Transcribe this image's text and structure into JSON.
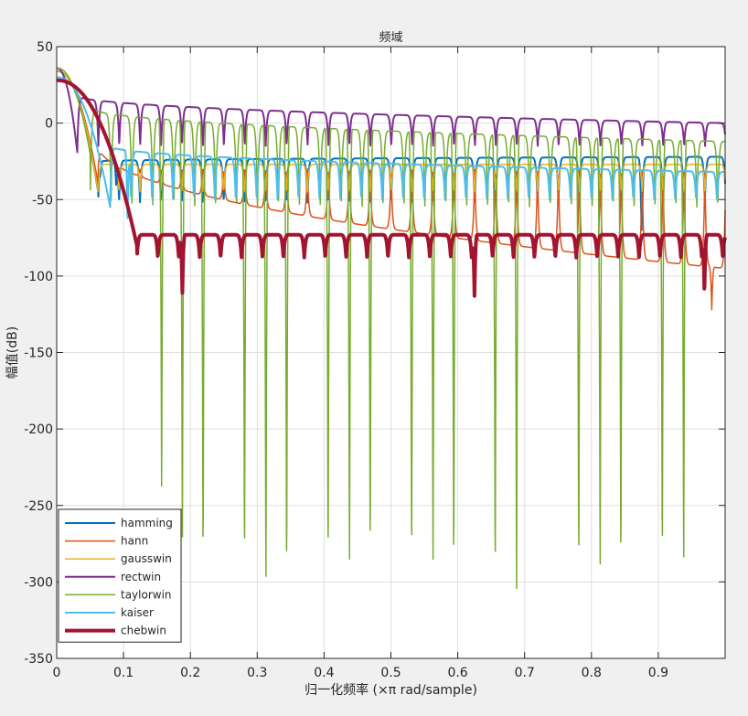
{
  "chart_data": {
    "type": "line",
    "title": "频域",
    "xlabel": "归一化频率  (×π rad/sample)",
    "ylabel": "幅值(dB)",
    "xlim": [
      0,
      1
    ],
    "ylim": [
      -350,
      50
    ],
    "xticks": [
      0,
      0.1,
      0.2,
      0.3,
      0.4,
      0.5,
      0.6,
      0.7,
      0.8,
      0.9
    ],
    "xtick_labels": [
      "0",
      "0.1",
      "0.2",
      "0.3",
      "0.4",
      "0.5",
      "0.6",
      "0.7",
      "0.8",
      "0.9"
    ],
    "yticks": [
      50,
      0,
      -50,
      -100,
      -150,
      -200,
      -250,
      -300,
      -350
    ],
    "ytick_labels": [
      "50",
      "0",
      "-50",
      "-100",
      "-150",
      "-200",
      "-250",
      "-300",
      "-350"
    ],
    "grid": true,
    "legend_position": "bottom-left",
    "series": [
      {
        "name": "hamming",
        "color": "#0072bd",
        "line_width": 2,
        "main_lobe": {
          "peak": 34,
          "first_null": 0.062,
          "null_depth": -45
        },
        "sidelobes": {
          "first_peak": -25,
          "far_peak": -22,
          "period": 0.0313,
          "null_depth": -52
        },
        "deep_nulls": [
          {
            "x": 0.065,
            "y": -35
          },
          {
            "x": 0.089,
            "y": -42
          },
          {
            "x": 0.875,
            "y": -70
          }
        ]
      },
      {
        "name": "hann",
        "color": "#d95319",
        "line_width": 1.5,
        "main_lobe": {
          "peak": 34,
          "first_null": 0.062,
          "null_depth": -40
        },
        "sidelobes": {
          "first_peak": -14,
          "far_peak": -95,
          "period": 0.0313,
          "null_depth": -30
        },
        "deep_nulls": [
          {
            "x": 0.98,
            "y": -122
          }
        ]
      },
      {
        "name": "gausswin",
        "color": "#edb120",
        "line_width": 1.5,
        "main_lobe": {
          "peak": 34,
          "first_null": 0.062,
          "null_depth": -45
        },
        "sidelobes": {
          "first_peak": -27,
          "far_peak": -27,
          "period": 0.0313,
          "null_depth": -45
        },
        "deep_nulls": []
      },
      {
        "name": "rectwin",
        "color": "#7e2f8e",
        "line_width": 2,
        "main_lobe": {
          "peak": 36,
          "first_null": 0.031,
          "null_depth": -20
        },
        "sidelobes": {
          "first_peak": 18,
          "far_peak": 0,
          "period": 0.0313,
          "null_depth": -15
        },
        "deep_nulls": []
      },
      {
        "name": "taylorwin",
        "color": "#77ac30",
        "line_width": 1.5,
        "main_lobe": {
          "peak": 36,
          "first_null": 0.05,
          "null_depth": -20
        },
        "sidelobes": {
          "first_peak": 10,
          "far_peak": -12,
          "period": 0.0313,
          "null_depth": -55
        },
        "deep_nulls": [
          {
            "x": 0.157,
            "y": -250
          },
          {
            "x": 0.188,
            "y": -285
          },
          {
            "x": 0.219,
            "y": -300
          },
          {
            "x": 0.281,
            "y": -301
          },
          {
            "x": 0.313,
            "y": -312
          },
          {
            "x": 0.344,
            "y": -310
          },
          {
            "x": 0.406,
            "y": -300
          },
          {
            "x": 0.438,
            "y": -300
          },
          {
            "x": 0.469,
            "y": -295
          },
          {
            "x": 0.531,
            "y": -298
          },
          {
            "x": 0.563,
            "y": -300
          },
          {
            "x": 0.594,
            "y": -305
          },
          {
            "x": 0.656,
            "y": -310
          },
          {
            "x": 0.688,
            "y": -320
          },
          {
            "x": 0.781,
            "y": -305
          },
          {
            "x": 0.813,
            "y": -303
          },
          {
            "x": 0.844,
            "y": -303
          },
          {
            "x": 0.906,
            "y": -298
          },
          {
            "x": 0.938,
            "y": -298
          }
        ]
      },
      {
        "name": "kaiser",
        "color": "#4dbeee",
        "line_width": 2,
        "main_lobe": {
          "peak": 30,
          "first_null": 0.08,
          "null_depth": -55
        },
        "sidelobes": {
          "first_peak": -15,
          "far_peak": -32,
          "period": 0.0313,
          "null_depth": -50
        },
        "deep_nulls": [
          {
            "x": 0.106,
            "y": -67
          }
        ]
      },
      {
        "name": "chebwin",
        "color": "#a2142f",
        "line_width": 4,
        "main_lobe": {
          "peak": 28,
          "first_null": 0.12,
          "null_depth": -80
        },
        "sidelobes": {
          "first_peak": -73,
          "far_peak": -73,
          "period": 0.0313,
          "null_depth": -88
        },
        "deep_nulls": [
          {
            "x": 0.188,
            "y": -113
          },
          {
            "x": 0.625,
            "y": -113
          },
          {
            "x": 0.969,
            "y": -112
          }
        ]
      }
    ]
  }
}
